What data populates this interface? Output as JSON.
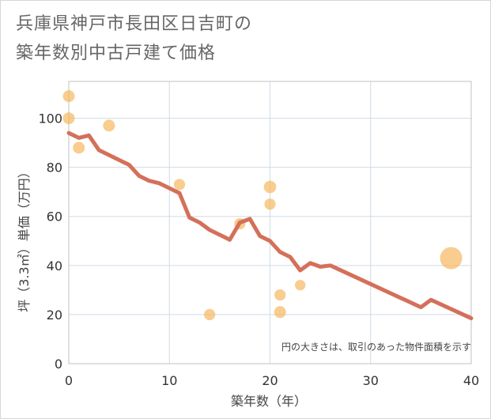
{
  "title_lines": [
    "兵庫県神戸市長田区日吉町の",
    "築年数別中古戸建て価格"
  ],
  "chart_data": {
    "type": "scatter",
    "xlabel": "築年数（年）",
    "ylabel": "坪（3.3㎡）単価（万円）",
    "xlim": [
      0,
      40
    ],
    "ylim": [
      0,
      115
    ],
    "xticks": [
      0,
      10,
      20,
      30,
      40
    ],
    "yticks": [
      0,
      20,
      40,
      60,
      80,
      100
    ],
    "grid": true,
    "annotation": "円の大きさは、取引のあった物件面積を示す",
    "colors": {
      "scatter": "#f5b860",
      "line": "#d4705a",
      "grid": "#cfdbe6",
      "plot_border": "#c0c0c0"
    },
    "scatter": [
      {
        "x": 0,
        "y": 109,
        "size": 1
      },
      {
        "x": 0,
        "y": 100,
        "size": 1
      },
      {
        "x": 1,
        "y": 88,
        "size": 1
      },
      {
        "x": 4,
        "y": 97,
        "size": 1
      },
      {
        "x": 11,
        "y": 73,
        "size": 0.9
      },
      {
        "x": 14,
        "y": 20,
        "size": 0.9
      },
      {
        "x": 17,
        "y": 57,
        "size": 0.9
      },
      {
        "x": 20,
        "y": 72,
        "size": 1.1
      },
      {
        "x": 20,
        "y": 65,
        "size": 0.9
      },
      {
        "x": 21,
        "y": 28,
        "size": 0.9
      },
      {
        "x": 21,
        "y": 21,
        "size": 1
      },
      {
        "x": 23,
        "y": 32,
        "size": 0.8
      },
      {
        "x": 38,
        "y": 43,
        "size": 3.5
      }
    ],
    "trend_line": {
      "x": [
        0,
        1,
        2,
        3,
        4,
        5,
        6,
        7,
        8,
        9,
        10,
        11,
        12,
        13,
        14,
        15,
        16,
        17,
        18,
        19,
        20,
        21,
        22,
        23,
        24,
        25,
        26,
        35,
        36,
        40
      ],
      "y": [
        94,
        92,
        93,
        87,
        85,
        83,
        81,
        76.5,
        74.5,
        73.5,
        71.5,
        69.5,
        59.5,
        57.5,
        54.5,
        52.5,
        50.5,
        57.5,
        59,
        52,
        50,
        45.5,
        43.5,
        38,
        41,
        39.5,
        40,
        23,
        26,
        18.5
      ]
    }
  }
}
